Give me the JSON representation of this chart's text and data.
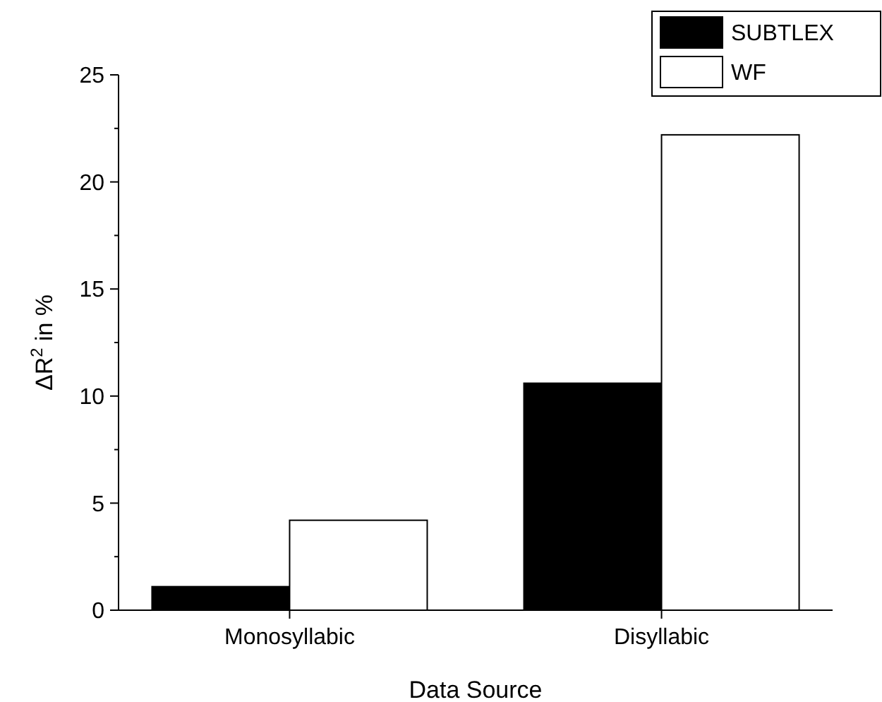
{
  "chart_data": {
    "type": "bar",
    "xlabel": "Data Source",
    "ylabel": "ΔR$^{2}$ in %",
    "categories": [
      "Monosyllabic",
      "Disyllabic"
    ],
    "series": [
      {
        "name": "SUBTLEX",
        "color": "#000000",
        "values": [
          1.1,
          10.6
        ]
      },
      {
        "name": "WF",
        "color": "#ffffff",
        "values": [
          4.2,
          22.2
        ]
      }
    ],
    "ylim": [
      0,
      25
    ],
    "yticks": [
      0,
      5,
      10,
      15,
      20,
      25
    ],
    "grid": false,
    "legend": "top right"
  }
}
